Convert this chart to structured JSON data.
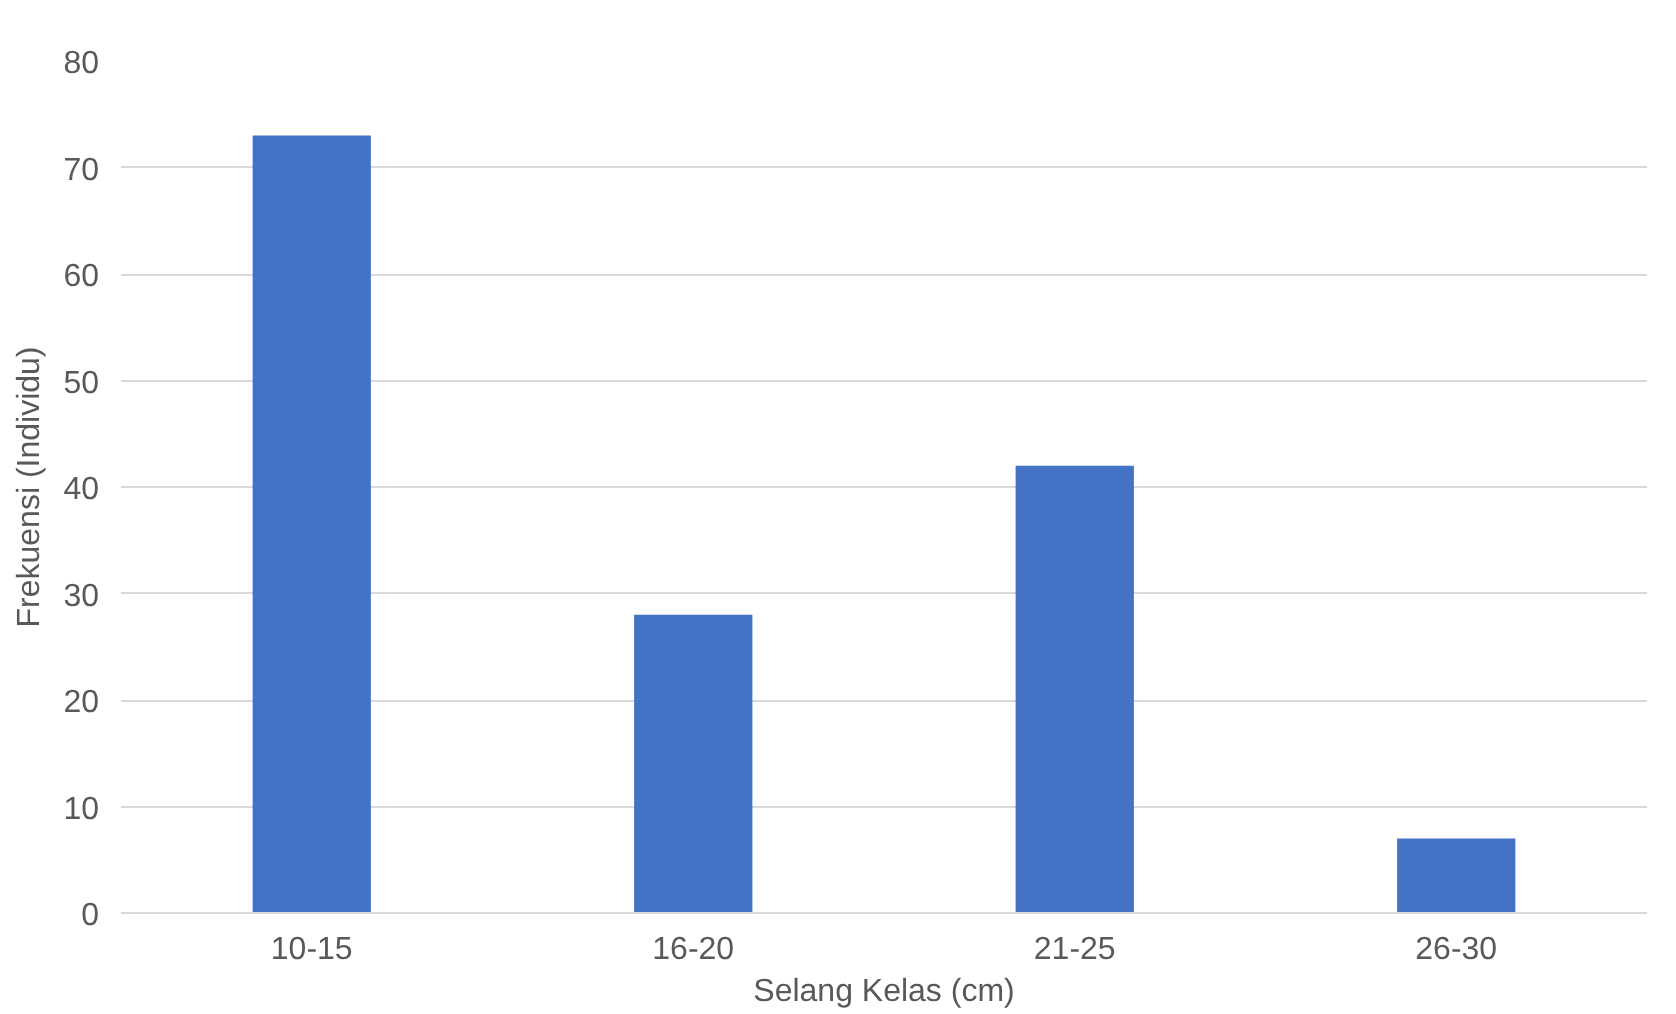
{
  "chart_data": {
    "type": "bar",
    "xlabel": "Selang Kelas (cm)",
    "ylabel": "Frekuensi (Individu)",
    "categories": [
      "10-15",
      "16-20",
      "21-25",
      "26-30"
    ],
    "values": [
      73,
      28,
      42,
      7
    ],
    "color": "#4472c4",
    "ylim": [
      0,
      80
    ],
    "yticks": [
      0,
      10,
      20,
      30,
      40,
      50,
      60,
      70,
      80
    ],
    "grid": "y"
  }
}
